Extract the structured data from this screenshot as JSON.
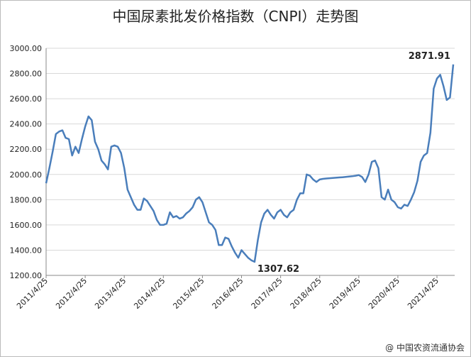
{
  "chart_data": {
    "type": "line",
    "title": "中国尿素批发价格指数（CNPI）走势图",
    "source": "@ 中国农资流通协会",
    "categories": [
      "2011/4/25",
      null,
      null,
      null,
      null,
      null,
      null,
      null,
      null,
      null,
      null,
      null,
      "2012/4/25",
      null,
      null,
      null,
      null,
      null,
      null,
      null,
      null,
      null,
      null,
      null,
      "2013/4/25",
      null,
      null,
      null,
      null,
      null,
      null,
      null,
      null,
      null,
      null,
      null,
      "2014/4/25",
      null,
      null,
      null,
      null,
      null,
      null,
      null,
      null,
      null,
      null,
      null,
      "2015/4/25",
      null,
      null,
      null,
      null,
      null,
      null,
      null,
      null,
      null,
      null,
      null,
      "2016/4/25",
      null,
      null,
      null,
      null,
      null,
      null,
      null,
      null,
      null,
      null,
      null,
      "2017/4/25",
      null,
      null,
      null,
      null,
      null,
      null,
      null,
      null,
      null,
      null,
      null,
      "2018/4/25",
      null,
      null,
      null,
      null,
      null,
      null,
      null,
      null,
      null,
      null,
      null,
      "2019/4/25",
      null,
      null,
      null,
      null,
      null,
      null,
      null,
      null,
      null,
      null,
      null,
      "2020/4/25",
      null,
      null,
      null,
      null,
      null,
      null,
      null,
      null,
      null,
      null,
      null,
      "2021/4/25",
      null,
      null,
      null,
      null,
      null
    ],
    "values": [
      1930,
      2050,
      2180,
      2320,
      2340,
      2350,
      2290,
      2280,
      2150,
      2220,
      2170,
      2280,
      2380,
      2460,
      2430,
      2260,
      2200,
      2110,
      2080,
      2040,
      2220,
      2230,
      2220,
      2170,
      2050,
      1880,
      1820,
      1760,
      1720,
      1720,
      1810,
      1790,
      1750,
      1710,
      1640,
      1600,
      1600,
      1610,
      1700,
      1660,
      1670,
      1650,
      1660,
      1690,
      1710,
      1740,
      1800,
      1820,
      1780,
      1700,
      1620,
      1600,
      1560,
      1440,
      1440,
      1500,
      1490,
      1430,
      1380,
      1340,
      1400,
      1370,
      1340,
      1320,
      1307.62,
      1480,
      1620,
      1690,
      1720,
      1680,
      1650,
      1700,
      1720,
      1680,
      1660,
      1700,
      1720,
      1800,
      1850,
      1850,
      2000,
      1990,
      1960,
      1940,
      1960,
      1965,
      1968,
      1970,
      1972,
      1974,
      1976,
      1978,
      1980,
      1983,
      1986,
      1990,
      1995,
      1980,
      1940,
      2000,
      2100,
      2110,
      2050,
      1820,
      1800,
      1880,
      1800,
      1780,
      1740,
      1730,
      1760,
      1750,
      1800,
      1860,
      1950,
      2100,
      2150,
      2170,
      2330,
      2680,
      2760,
      2790,
      2700,
      2590,
      2610,
      2871.91
    ],
    "value_labels": [
      null,
      null,
      null,
      null,
      null,
      null,
      null,
      null,
      null,
      null,
      null,
      null,
      null,
      null,
      null,
      null,
      null,
      null,
      null,
      null,
      null,
      null,
      null,
      null,
      null,
      null,
      null,
      null,
      null,
      null,
      null,
      null,
      null,
      null,
      null,
      null,
      null,
      null,
      null,
      null,
      null,
      null,
      null,
      null,
      null,
      null,
      null,
      null,
      null,
      null,
      null,
      null,
      null,
      null,
      null,
      null,
      null,
      null,
      null,
      null,
      null,
      null,
      null,
      null,
      "1307.62",
      null,
      null,
      null,
      null,
      null,
      null,
      null,
      null,
      null,
      null,
      null,
      null,
      null,
      null,
      null,
      null,
      null,
      null,
      null,
      null,
      null,
      null,
      null,
      null,
      null,
      null,
      null,
      null,
      null,
      null,
      null,
      null,
      null,
      null,
      null,
      null,
      null,
      null,
      null,
      null,
      null,
      null,
      null,
      null,
      null,
      null,
      null,
      null,
      null,
      null,
      null,
      null,
      null,
      null,
      null,
      null,
      null,
      null,
      null,
      null,
      "2871.91"
    ],
    "color": "#4a7ebb",
    "ylim": [
      1200,
      3000
    ],
    "yticks": [
      {
        "value": 1200,
        "label": "1200.00"
      },
      {
        "value": 1400,
        "label": "1400.00"
      },
      {
        "value": 1600,
        "label": "1600.00"
      },
      {
        "value": 1800,
        "label": "1800.00"
      },
      {
        "value": 2000,
        "label": "2000.00"
      },
      {
        "value": 2200,
        "label": "2200.00"
      },
      {
        "value": 2400,
        "label": "2400.00"
      },
      {
        "value": 2600,
        "label": "2600.00"
      },
      {
        "value": 2800,
        "label": "2800.00"
      },
      {
        "value": 3000,
        "label": "3000.00"
      }
    ],
    "grid": true
  }
}
